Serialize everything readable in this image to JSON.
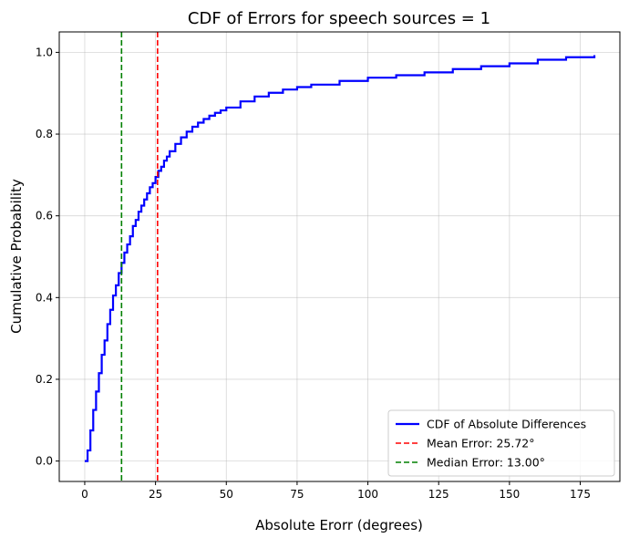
{
  "chart_data": {
    "type": "line",
    "title": "CDF of Errors for speech sources = 1",
    "xlabel": "Absolute Erorr (degrees)",
    "ylabel": "Cumulative Probability",
    "xlim": [
      -9,
      189
    ],
    "ylim": [
      -0.05,
      1.05
    ],
    "xticks": [
      0,
      25,
      50,
      75,
      100,
      125,
      150,
      175
    ],
    "yticks": [
      0.0,
      0.2,
      0.4,
      0.6,
      0.8,
      1.0
    ],
    "xtick_labels": [
      "0",
      "25",
      "50",
      "75",
      "100",
      "125",
      "150",
      "175"
    ],
    "ytick_labels": [
      "0.0",
      "0.2",
      "0.4",
      "0.6",
      "0.8",
      "1.0"
    ],
    "grid": true,
    "legend_position": "lower-right",
    "series": [
      {
        "name": "CDF of Absolute Differences",
        "color": "#0000ff",
        "style": "solid-step",
        "x": [
          0,
          1,
          2,
          3,
          4,
          5,
          6,
          7,
          8,
          9,
          10,
          11,
          12,
          13,
          14,
          15,
          16,
          17,
          18,
          19,
          20,
          21,
          22,
          23,
          24,
          25,
          26,
          27,
          28,
          29,
          30,
          32,
          34,
          36,
          38,
          40,
          42,
          44,
          46,
          48,
          50,
          55,
          60,
          65,
          70,
          75,
          80,
          90,
          100,
          110,
          120,
          130,
          140,
          150,
          160,
          170,
          180
        ],
        "y": [
          0.0,
          0.026,
          0.075,
          0.125,
          0.17,
          0.215,
          0.26,
          0.295,
          0.335,
          0.37,
          0.405,
          0.43,
          0.46,
          0.485,
          0.51,
          0.53,
          0.55,
          0.575,
          0.59,
          0.61,
          0.625,
          0.64,
          0.655,
          0.67,
          0.68,
          0.695,
          0.71,
          0.72,
          0.735,
          0.745,
          0.758,
          0.776,
          0.792,
          0.806,
          0.818,
          0.828,
          0.837,
          0.845,
          0.852,
          0.858,
          0.865,
          0.88,
          0.892,
          0.901,
          0.909,
          0.915,
          0.921,
          0.93,
          0.938,
          0.944,
          0.951,
          0.959,
          0.966,
          0.973,
          0.982,
          0.988,
          0.993
        ]
      },
      {
        "name": "Mean Error: 25.72°",
        "color": "#ff0000",
        "style": "dashed-vline",
        "x": 25.72
      },
      {
        "name": "Median Error: 13.00°",
        "color": "#008000",
        "style": "dashed-vline",
        "x": 13.0
      }
    ]
  }
}
